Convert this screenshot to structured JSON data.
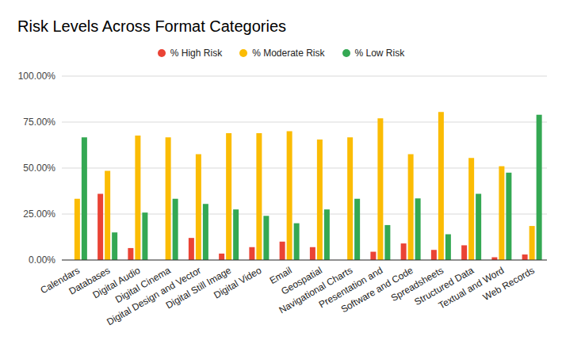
{
  "chart_data": {
    "type": "bar",
    "title": "Risk Levels Across Format Categories",
    "categories": [
      "Calendars",
      "Databases",
      "Digital Audio",
      "Digital Cinema",
      "Digital Design and Vector",
      "Digital Still Image",
      "Digital Video",
      "Email",
      "Geospatial",
      "Navigational Charts",
      "Presentation and",
      "Software and Code",
      "Spreadsheets",
      "Structured Data",
      "Textual and Word",
      "Web Records"
    ],
    "series": [
      {
        "name": "% High Risk",
        "color": "#ea4335",
        "values": [
          0,
          36,
          6.5,
          0,
          12,
          3.5,
          7,
          10,
          7,
          0,
          4.5,
          9,
          5.5,
          8,
          1.5,
          3
        ]
      },
      {
        "name": "% Moderate Risk",
        "color": "#fbbc04",
        "values": [
          33.3,
          48.5,
          67.7,
          66.7,
          57.5,
          69,
          69,
          70,
          65.5,
          66.7,
          77,
          57.5,
          80.5,
          55.5,
          51,
          18.5
        ]
      },
      {
        "name": "% Low Risk",
        "color": "#34a853",
        "values": [
          66.7,
          15,
          25.8,
          33.3,
          30.5,
          27.5,
          24,
          20,
          27.5,
          33.3,
          19,
          33.5,
          14,
          36,
          47.5,
          79
        ]
      }
    ],
    "ylim": [
      0,
      100
    ],
    "yticks": [
      {
        "value": 0,
        "label": "0.00%"
      },
      {
        "value": 25,
        "label": "25.00%"
      },
      {
        "value": 50,
        "label": "50.00%"
      },
      {
        "value": 75,
        "label": "75.00%"
      },
      {
        "value": 100,
        "label": "100.00%"
      }
    ],
    "grid": true,
    "legend": "top"
  }
}
